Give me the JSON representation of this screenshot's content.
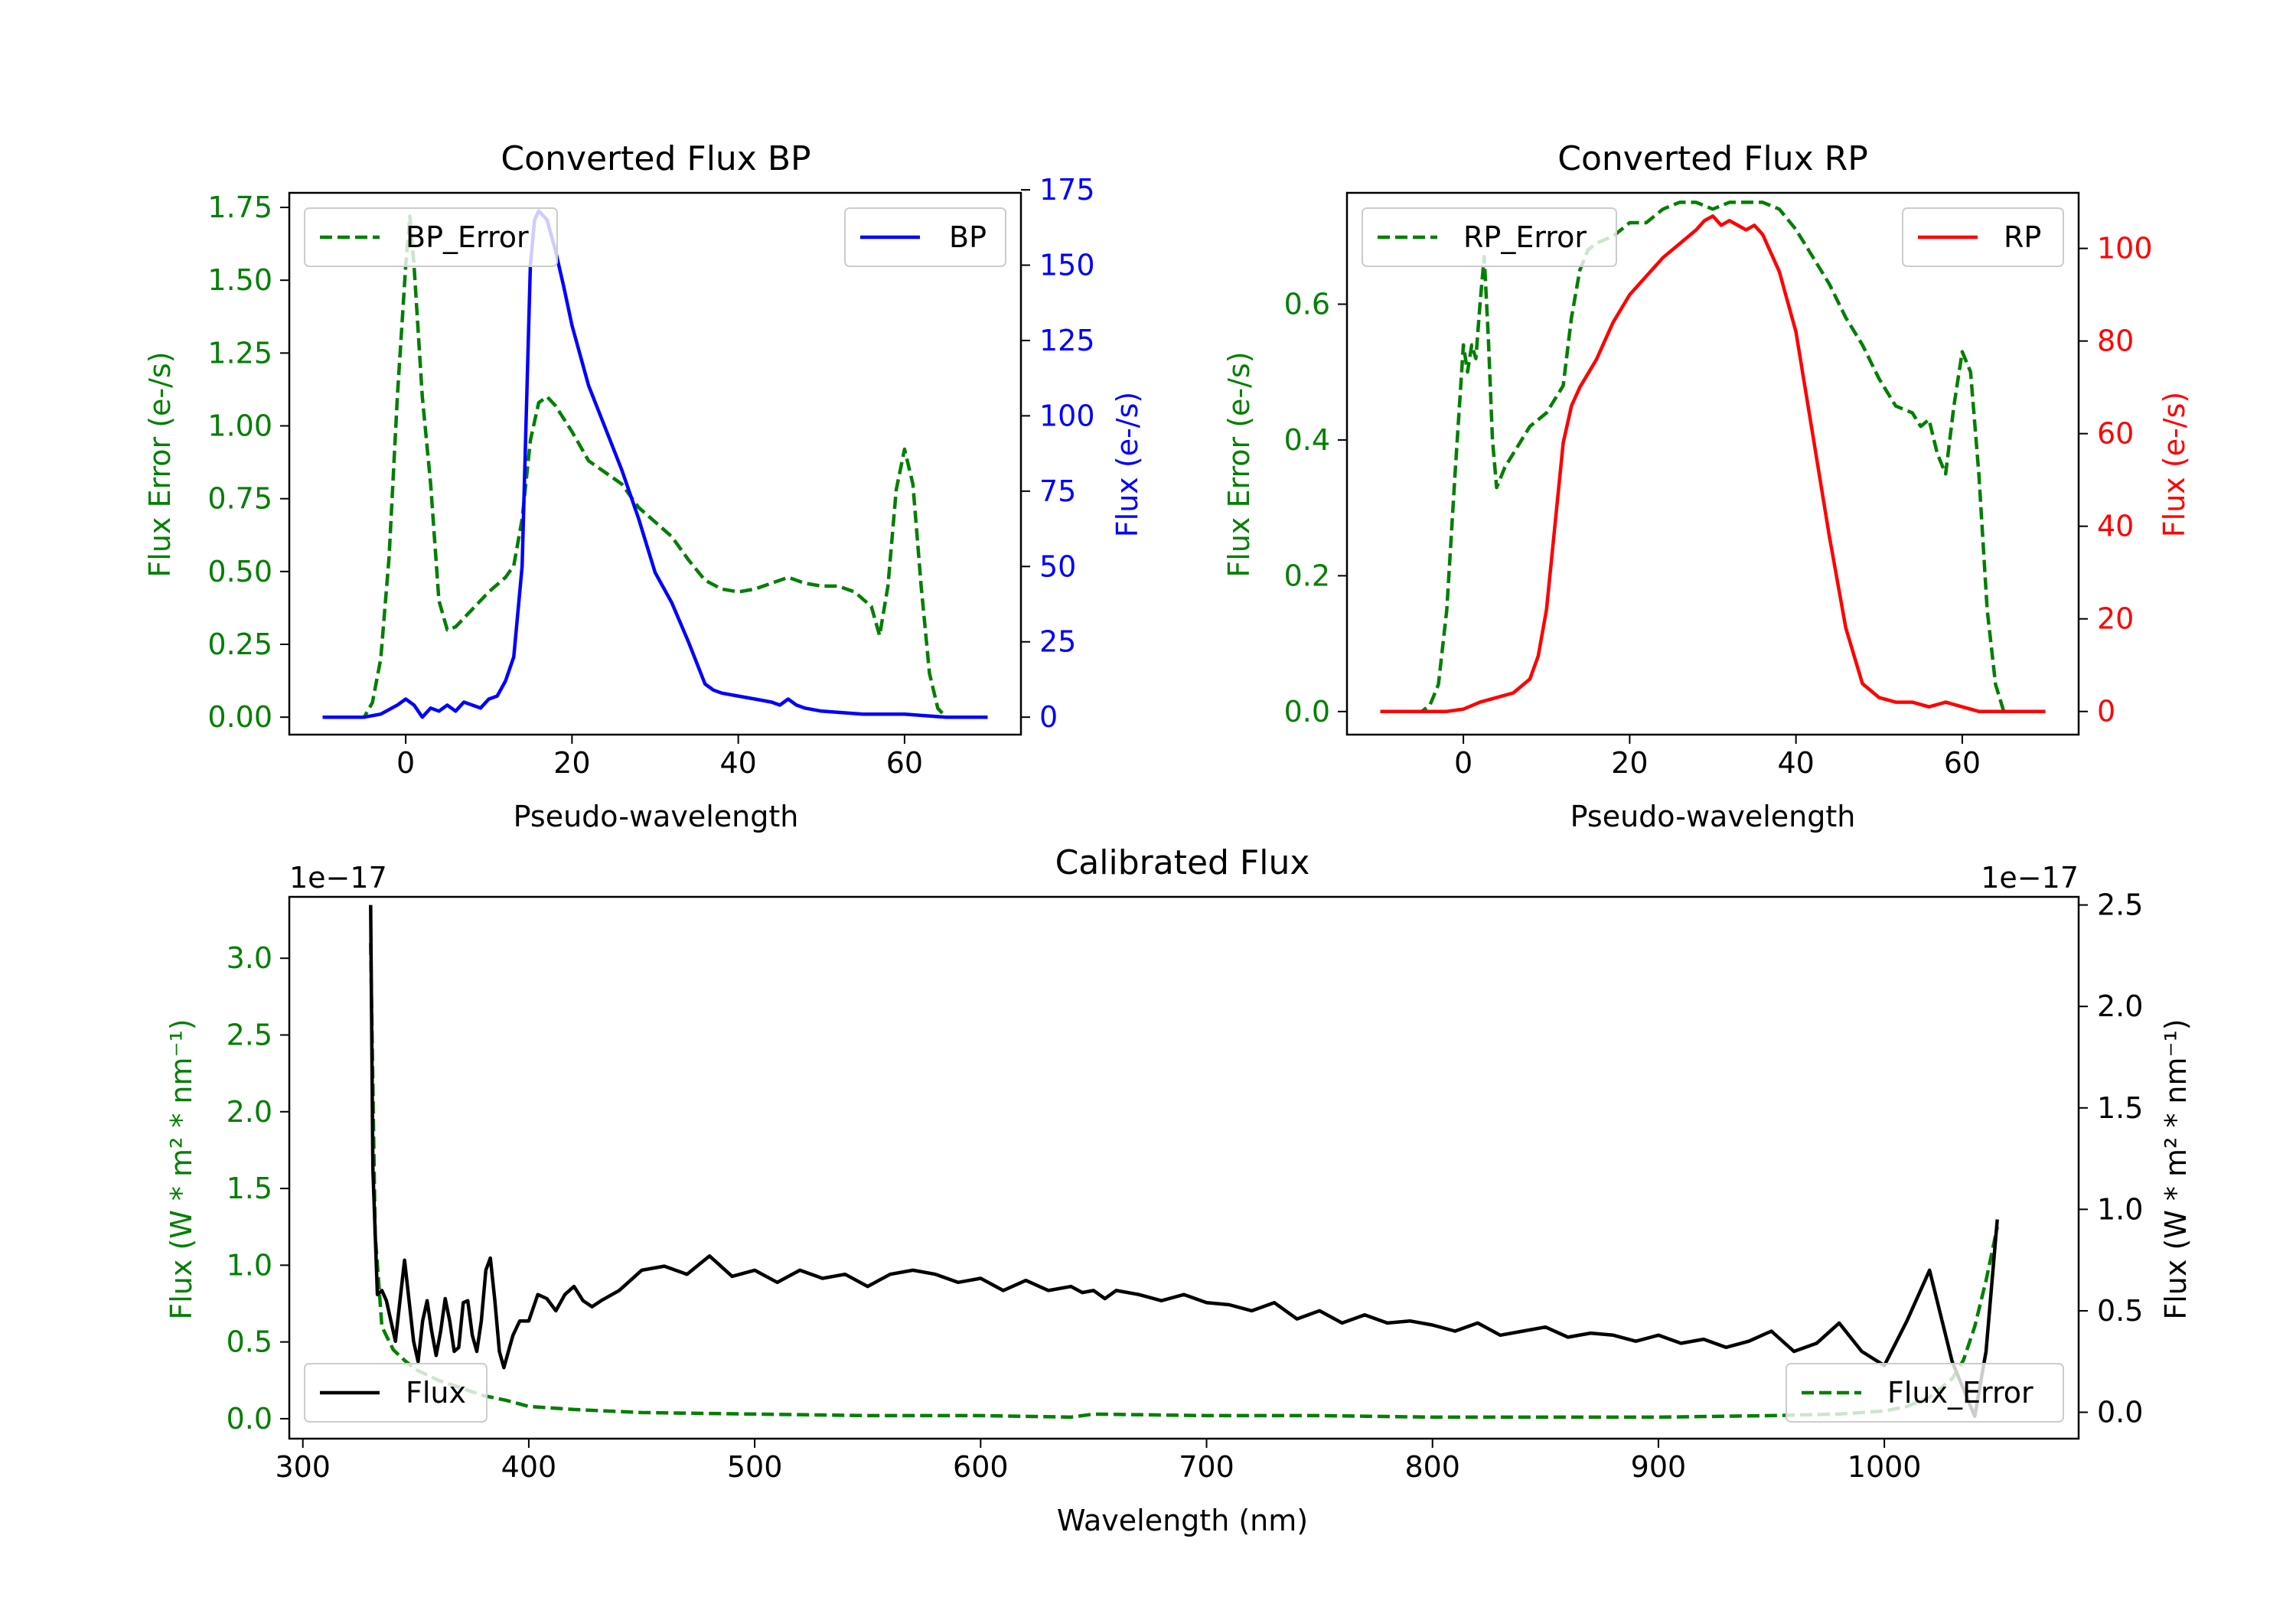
{
  "colors": {
    "error": "#007f00",
    "bp": "#0000ff",
    "rp": "#ff0000",
    "flux": "#000000"
  },
  "chart_data": [
    {
      "id": "bp",
      "type": "line",
      "title": "Converted Flux BP",
      "xlabel": "Pseudo-wavelength",
      "ylabel_left": "Flux Error (e-/s)",
      "ylabel_right": "Flux (e-/s)",
      "xlim": [
        -14,
        74
      ],
      "ylim_left": [
        -0.06,
        1.8
      ],
      "ylim_right": [
        -5.8,
        174
      ],
      "xticks": [
        0,
        20,
        40,
        60
      ],
      "yticks_left": [
        0.0,
        0.25,
        0.5,
        0.75,
        1.0,
        1.25,
        1.5,
        1.75
      ],
      "yticks_left_labels": [
        "0.00",
        "0.25",
        "0.50",
        "0.75",
        "1.00",
        "1.25",
        "1.50",
        "1.75"
      ],
      "yticks_right": [
        0,
        25,
        50,
        75,
        100,
        125,
        150,
        175
      ],
      "yticks_right_labels": [
        "0",
        "25",
        "50",
        "75",
        "100",
        "125",
        "150",
        "175"
      ],
      "series": [
        {
          "name": "BP_Error",
          "axis": "left",
          "style": "dashed",
          "color_key": "error",
          "x": [
            -10,
            -5,
            -4,
            -3,
            -2,
            -1,
            0,
            0.5,
            1,
            2,
            3,
            4,
            5,
            6,
            8,
            10,
            12,
            13,
            14,
            15,
            16,
            17,
            18,
            20,
            22,
            24,
            26,
            28,
            30,
            32,
            34,
            36,
            38,
            40,
            42,
            44,
            46,
            48,
            50,
            52,
            54,
            56,
            57,
            58,
            59,
            60,
            61,
            62,
            63,
            64,
            65,
            70
          ],
          "y": [
            0,
            0,
            0.05,
            0.2,
            0.55,
            1.1,
            1.55,
            1.72,
            1.55,
            1.1,
            0.8,
            0.4,
            0.3,
            0.31,
            0.37,
            0.43,
            0.48,
            0.52,
            0.68,
            0.95,
            1.08,
            1.1,
            1.07,
            0.98,
            0.88,
            0.84,
            0.8,
            0.72,
            0.67,
            0.62,
            0.54,
            0.47,
            0.44,
            0.43,
            0.44,
            0.46,
            0.48,
            0.46,
            0.45,
            0.45,
            0.43,
            0.38,
            0.28,
            0.45,
            0.78,
            0.92,
            0.8,
            0.45,
            0.15,
            0.03,
            0,
            0
          ]
        },
        {
          "name": "BP",
          "axis": "right",
          "style": "solid",
          "color_key": "bp",
          "x": [
            -10,
            -5,
            -3,
            -1,
            0,
            1,
            2,
            3,
            4,
            5,
            6,
            7,
            8,
            9,
            10,
            11,
            12,
            13,
            14,
            14.5,
            15,
            15.5,
            16,
            17,
            18,
            19,
            20,
            22,
            24,
            26,
            28,
            30,
            32,
            34,
            36,
            37,
            38,
            40,
            42,
            44,
            45,
            46,
            47,
            48,
            50,
            55,
            60,
            65,
            70
          ],
          "y": [
            0,
            0,
            1,
            4,
            6,
            4,
            0,
            3,
            2,
            4,
            2,
            5,
            4,
            3,
            6,
            7,
            12,
            20,
            50,
            100,
            150,
            165,
            168,
            165,
            155,
            143,
            130,
            110,
            96,
            82,
            66,
            48,
            38,
            25,
            11,
            9,
            8,
            7,
            6,
            5,
            4,
            6,
            4,
            3,
            2,
            1,
            1,
            0,
            0
          ]
        }
      ],
      "legends": [
        {
          "position": "upper-left",
          "entries": [
            "BP_Error"
          ]
        },
        {
          "position": "upper-right",
          "entries": [
            "BP"
          ]
        }
      ]
    },
    {
      "id": "rp",
      "type": "line",
      "title": "Converted Flux RP",
      "xlabel": "Pseudo-wavelength",
      "ylabel_left": "Flux Error (e-/s)",
      "ylabel_right": "Flux (e-/s)",
      "xlim": [
        -14,
        74
      ],
      "ylim_left": [
        -0.034,
        0.764
      ],
      "ylim_right": [
        -5,
        112
      ],
      "xticks": [
        0,
        20,
        40,
        60
      ],
      "yticks_left": [
        0.0,
        0.2,
        0.4,
        0.6
      ],
      "yticks_left_labels": [
        "0.0",
        "0.2",
        "0.4",
        "0.6"
      ],
      "yticks_right": [
        0,
        20,
        40,
        60,
        80,
        100
      ],
      "yticks_right_labels": [
        "0",
        "20",
        "40",
        "60",
        "80",
        "100"
      ],
      "series": [
        {
          "name": "RP_Error",
          "axis": "left",
          "style": "dashed",
          "color_key": "error",
          "x": [
            -10,
            -5,
            -4,
            -3,
            -2,
            -1,
            0,
            0.5,
            1,
            1.5,
            2,
            2.5,
            3,
            3.5,
            4,
            5,
            6,
            8,
            10,
            12,
            13,
            14,
            15,
            16,
            18,
            20,
            22,
            24,
            26,
            28,
            30,
            32,
            34,
            36,
            38,
            40,
            42,
            44,
            46,
            48,
            50,
            52,
            54,
            55,
            56,
            57,
            58,
            59,
            60,
            61,
            62,
            63,
            64,
            65,
            70
          ],
          "y": [
            0,
            0,
            0.01,
            0.04,
            0.15,
            0.35,
            0.54,
            0.5,
            0.54,
            0.52,
            0.6,
            0.67,
            0.55,
            0.4,
            0.33,
            0.36,
            0.38,
            0.42,
            0.44,
            0.48,
            0.58,
            0.65,
            0.68,
            0.69,
            0.7,
            0.72,
            0.72,
            0.74,
            0.75,
            0.75,
            0.74,
            0.75,
            0.75,
            0.75,
            0.74,
            0.71,
            0.67,
            0.63,
            0.58,
            0.54,
            0.49,
            0.45,
            0.44,
            0.42,
            0.43,
            0.38,
            0.35,
            0.45,
            0.53,
            0.5,
            0.35,
            0.15,
            0.04,
            0,
            0
          ]
        },
        {
          "name": "RP",
          "axis": "right",
          "style": "solid",
          "color_key": "rp",
          "x": [
            -10,
            -2,
            0,
            2,
            4,
            6,
            8,
            9,
            10,
            11,
            12,
            13,
            14,
            16,
            18,
            20,
            22,
            24,
            26,
            28,
            29,
            30,
            31,
            32,
            33,
            34,
            35,
            36,
            38,
            40,
            42,
            44,
            46,
            48,
            50,
            52,
            54,
            56,
            58,
            60,
            62,
            65,
            70
          ],
          "y": [
            0,
            0,
            0.5,
            2,
            3,
            4,
            7,
            12,
            22,
            40,
            58,
            66,
            70,
            76,
            84,
            90,
            94,
            98,
            101,
            104,
            106,
            107,
            105,
            106,
            105,
            104,
            105,
            103,
            95,
            82,
            60,
            38,
            18,
            6,
            3,
            2,
            2,
            1,
            2,
            1,
            0,
            0,
            0
          ]
        }
      ],
      "legends": [
        {
          "position": "upper-left",
          "entries": [
            "RP_Error"
          ]
        },
        {
          "position": "upper-right",
          "entries": [
            "RP"
          ]
        }
      ]
    },
    {
      "id": "cal",
      "type": "line",
      "title": "Calibrated Flux",
      "xlabel": "Wavelength (nm)",
      "ylabel_left": "Flux (W * m² * nm⁻¹)",
      "ylabel_right": "Flux (W * m² * nm⁻¹)",
      "offset_left": "1e−17",
      "offset_right": "1e−17",
      "xlim": [
        294,
        1086
      ],
      "ylim_left": [
        -0.13,
        3.4
      ],
      "ylim_right": [
        -0.13,
        2.54
      ],
      "xticks": [
        300,
        400,
        500,
        600,
        700,
        800,
        900,
        1000
      ],
      "yticks_left": [
        0.0,
        0.5,
        1.0,
        1.5,
        2.0,
        2.5,
        3.0
      ],
      "yticks_left_labels": [
        "0.0",
        "0.5",
        "1.0",
        "1.5",
        "2.0",
        "2.5",
        "3.0"
      ],
      "yticks_right": [
        0.0,
        0.5,
        1.0,
        1.5,
        2.0,
        2.5
      ],
      "yticks_right_labels": [
        "0.0",
        "0.5",
        "1.0",
        "1.5",
        "2.0",
        "2.5"
      ],
      "series": [
        {
          "name": "Flux_Error",
          "axis": "left",
          "style": "dashed",
          "color_key": "error",
          "x": [
            330,
            332,
            335,
            340,
            345,
            350,
            360,
            370,
            380,
            390,
            400,
            420,
            450,
            500,
            550,
            600,
            640,
            650,
            700,
            750,
            800,
            850,
            900,
            950,
            980,
            1000,
            1010,
            1020,
            1030,
            1035,
            1040,
            1045,
            1050
          ],
          "y": [
            3.1,
            1.2,
            0.6,
            0.45,
            0.38,
            0.32,
            0.25,
            0.2,
            0.15,
            0.12,
            0.08,
            0.06,
            0.04,
            0.03,
            0.02,
            0.02,
            0.01,
            0.03,
            0.02,
            0.02,
            0.01,
            0.01,
            0.01,
            0.02,
            0.03,
            0.05,
            0.08,
            0.14,
            0.26,
            0.38,
            0.6,
            0.9,
            1.25
          ],
          "note": "values in units of 1e-17"
        },
        {
          "name": "Flux",
          "axis": "right",
          "style": "solid",
          "color_key": "flux",
          "x": [
            330,
            331,
            333,
            335,
            337,
            339,
            341,
            343,
            345,
            347,
            349,
            351,
            353,
            355,
            357,
            359,
            361,
            363,
            365,
            367,
            369,
            371,
            373,
            375,
            377,
            379,
            381,
            383,
            385,
            387,
            389,
            391,
            393,
            396,
            400,
            404,
            408,
            412,
            416,
            420,
            424,
            428,
            432,
            440,
            450,
            460,
            470,
            480,
            490,
            500,
            510,
            520,
            530,
            540,
            550,
            560,
            570,
            580,
            590,
            600,
            610,
            620,
            630,
            640,
            645,
            650,
            655,
            660,
            670,
            680,
            690,
            700,
            710,
            720,
            730,
            740,
            750,
            760,
            770,
            780,
            790,
            800,
            810,
            820,
            830,
            840,
            850,
            860,
            870,
            880,
            890,
            900,
            910,
            920,
            930,
            940,
            950,
            960,
            970,
            980,
            990,
            1000,
            1010,
            1020,
            1030,
            1040,
            1045,
            1050
          ],
          "y": [
            2.5,
            1.2,
            0.58,
            0.6,
            0.55,
            0.45,
            0.35,
            0.55,
            0.75,
            0.55,
            0.35,
            0.25,
            0.45,
            0.55,
            0.4,
            0.28,
            0.4,
            0.56,
            0.45,
            0.3,
            0.32,
            0.54,
            0.55,
            0.38,
            0.3,
            0.45,
            0.7,
            0.76,
            0.55,
            0.3,
            0.22,
            0.3,
            0.38,
            0.45,
            0.45,
            0.58,
            0.56,
            0.5,
            0.58,
            0.62,
            0.55,
            0.52,
            0.55,
            0.6,
            0.7,
            0.72,
            0.68,
            0.77,
            0.67,
            0.7,
            0.64,
            0.7,
            0.66,
            0.68,
            0.62,
            0.68,
            0.7,
            0.68,
            0.64,
            0.66,
            0.6,
            0.65,
            0.6,
            0.62,
            0.59,
            0.6,
            0.56,
            0.6,
            0.58,
            0.55,
            0.58,
            0.54,
            0.53,
            0.5,
            0.54,
            0.46,
            0.5,
            0.44,
            0.48,
            0.44,
            0.45,
            0.43,
            0.4,
            0.44,
            0.38,
            0.4,
            0.42,
            0.37,
            0.39,
            0.38,
            0.35,
            0.38,
            0.34,
            0.36,
            0.32,
            0.35,
            0.4,
            0.3,
            0.34,
            0.44,
            0.3,
            0.23,
            0.45,
            0.7,
            0.25,
            -0.02,
            0.3,
            0.95
          ],
          "note": "values in units of 1e-17"
        }
      ],
      "legends": [
        {
          "position": "lower-left",
          "entries": [
            "Flux"
          ]
        },
        {
          "position": "lower-right",
          "entries": [
            "Flux_Error"
          ]
        }
      ]
    }
  ]
}
